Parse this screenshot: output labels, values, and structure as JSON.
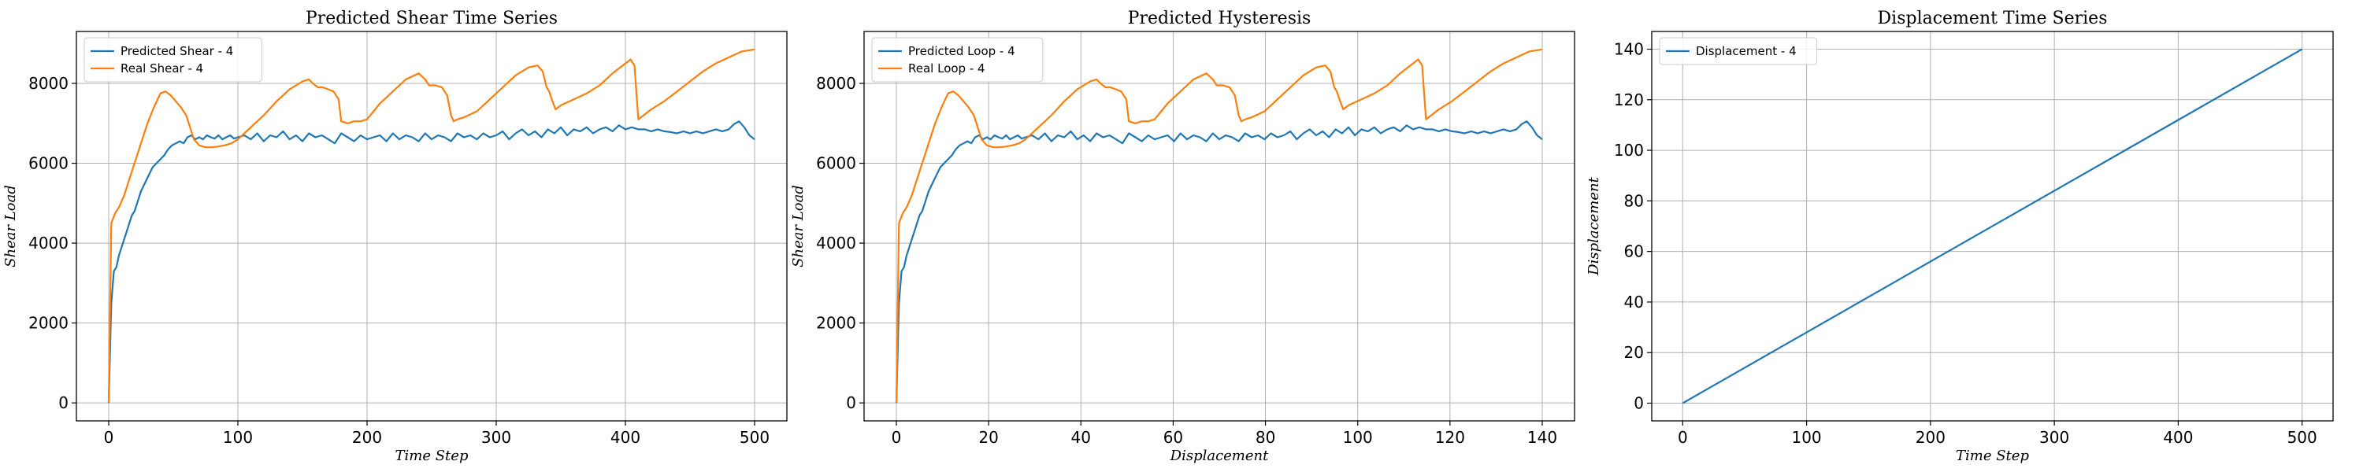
{
  "chart_data": [
    {
      "type": "line",
      "title": "Predicted Shear Time Series",
      "xlabel": "Time Step",
      "ylabel": "Shear Load",
      "xlim": [
        -25,
        525
      ],
      "ylim": [
        -450,
        9300
      ],
      "xticks": [
        0,
        100,
        200,
        300,
        400,
        500
      ],
      "yticks": [
        0,
        2000,
        4000,
        6000,
        8000
      ],
      "grid": true,
      "legend": "top-left",
      "series": [
        {
          "name": "Predicted Shear - 4",
          "color": "#1f77b4",
          "x": [
            0,
            2,
            4,
            6,
            8,
            10,
            12,
            14,
            16,
            18,
            20,
            22,
            25,
            28,
            31,
            34,
            37,
            40,
            43,
            46,
            49,
            52,
            55,
            58,
            61,
            64,
            67,
            70,
            73,
            76,
            79,
            82,
            85,
            88,
            91,
            94,
            97,
            100,
            105,
            110,
            115,
            120,
            125,
            130,
            135,
            140,
            145,
            150,
            155,
            160,
            165,
            170,
            175,
            180,
            185,
            190,
            195,
            200,
            205,
            210,
            215,
            220,
            225,
            230,
            235,
            240,
            245,
            250,
            255,
            260,
            265,
            270,
            275,
            280,
            285,
            290,
            295,
            300,
            305,
            310,
            315,
            320,
            325,
            330,
            335,
            340,
            345,
            350,
            355,
            360,
            365,
            370,
            375,
            380,
            385,
            390,
            395,
            400,
            405,
            410,
            415,
            420,
            425,
            430,
            435,
            440,
            445,
            450,
            455,
            460,
            465,
            470,
            475,
            480,
            484,
            488,
            492,
            496,
            500
          ],
          "values": [
            0,
            2500,
            3300,
            3400,
            3700,
            3900,
            4100,
            4300,
            4500,
            4700,
            4800,
            5000,
            5300,
            5500,
            5700,
            5900,
            6000,
            6100,
            6200,
            6350,
            6450,
            6500,
            6550,
            6500,
            6650,
            6700,
            6600,
            6650,
            6600,
            6700,
            6650,
            6620,
            6700,
            6600,
            6650,
            6700,
            6620,
            6650,
            6700,
            6600,
            6750,
            6550,
            6700,
            6650,
            6800,
            6600,
            6700,
            6550,
            6750,
            6650,
            6700,
            6600,
            6500,
            6750,
            6650,
            6550,
            6700,
            6600,
            6650,
            6700,
            6550,
            6750,
            6600,
            6700,
            6650,
            6550,
            6750,
            6600,
            6700,
            6650,
            6550,
            6750,
            6650,
            6700,
            6600,
            6750,
            6650,
            6700,
            6800,
            6600,
            6750,
            6850,
            6700,
            6800,
            6650,
            6850,
            6750,
            6900,
            6700,
            6850,
            6800,
            6900,
            6750,
            6850,
            6900,
            6800,
            6950,
            6850,
            6900,
            6850,
            6850,
            6800,
            6850,
            6800,
            6780,
            6750,
            6800,
            6750,
            6800,
            6750,
            6800,
            6850,
            6800,
            6850,
            6980,
            7050,
            6900,
            6700,
            6600
          ]
        },
        {
          "name": "Real Shear - 4",
          "color": "#ff7f0e",
          "x": [
            0,
            2,
            5,
            8,
            12,
            16,
            20,
            25,
            30,
            35,
            40,
            44,
            48,
            52,
            56,
            60,
            63,
            66,
            70,
            75,
            80,
            85,
            90,
            95,
            100,
            110,
            120,
            130,
            140,
            150,
            155,
            158,
            162,
            166,
            170,
            174,
            178,
            180,
            185,
            190,
            195,
            200,
            205,
            210,
            220,
            230,
            240,
            245,
            248,
            253,
            258,
            262,
            265,
            267,
            270,
            275,
            285,
            295,
            305,
            315,
            325,
            332,
            336,
            339,
            341,
            343,
            346,
            350,
            360,
            370,
            380,
            390,
            400,
            404,
            406,
            407,
            410,
            420,
            430,
            440,
            450,
            460,
            470,
            480,
            490,
            500
          ],
          "values": [
            0,
            4500,
            4750,
            4900,
            5200,
            5600,
            6000,
            6500,
            7000,
            7400,
            7750,
            7800,
            7700,
            7550,
            7400,
            7200,
            6900,
            6600,
            6450,
            6400,
            6400,
            6420,
            6450,
            6500,
            6600,
            6900,
            7200,
            7550,
            7850,
            8050,
            8100,
            8000,
            7900,
            7900,
            7850,
            7800,
            7600,
            7050,
            7000,
            7050,
            7050,
            7100,
            7300,
            7500,
            7800,
            8100,
            8250,
            8100,
            7950,
            7950,
            7900,
            7700,
            7200,
            7050,
            7100,
            7150,
            7300,
            7600,
            7900,
            8200,
            8400,
            8450,
            8300,
            7900,
            7800,
            7600,
            7350,
            7450,
            7600,
            7750,
            7950,
            8250,
            8500,
            8600,
            8500,
            8450,
            7100,
            7350,
            7550,
            7800,
            8050,
            8300,
            8500,
            8650,
            8800,
            8850
          ]
        }
      ]
    },
    {
      "type": "line",
      "title": "Predicted Hysteresis",
      "xlabel": "Displacement",
      "ylabel": "Shear Load",
      "xlim": [
        -7,
        147
      ],
      "ylim": [
        -450,
        9300
      ],
      "xticks": [
        0,
        20,
        40,
        60,
        80,
        100,
        120,
        140
      ],
      "yticks": [
        0,
        2000,
        4000,
        6000,
        8000
      ],
      "grid": true,
      "legend": "top-left",
      "series": [
        {
          "name": "Predicted Loop - 4",
          "color": "#1f77b4",
          "x_from_series_0_scale": 0.28,
          "values_from": "chart_data.0.series.0"
        },
        {
          "name": "Real Loop - 4",
          "color": "#ff7f0e",
          "x_from_series_0_scale": 0.28,
          "values_from": "chart_data.0.series.1"
        }
      ]
    },
    {
      "type": "line",
      "title": "Displacement Time Series",
      "xlabel": "Time Step",
      "ylabel": "Displacement",
      "xlim": [
        -25,
        525
      ],
      "ylim": [
        -7,
        147
      ],
      "xticks": [
        0,
        100,
        200,
        300,
        400,
        500
      ],
      "yticks": [
        0,
        20,
        40,
        60,
        80,
        100,
        120,
        140
      ],
      "grid": true,
      "legend": "top-left",
      "series": [
        {
          "name": "Displacement - 4",
          "color": "#1f77b4",
          "x": [
            0,
            500
          ],
          "values": [
            0,
            140
          ]
        }
      ]
    }
  ]
}
